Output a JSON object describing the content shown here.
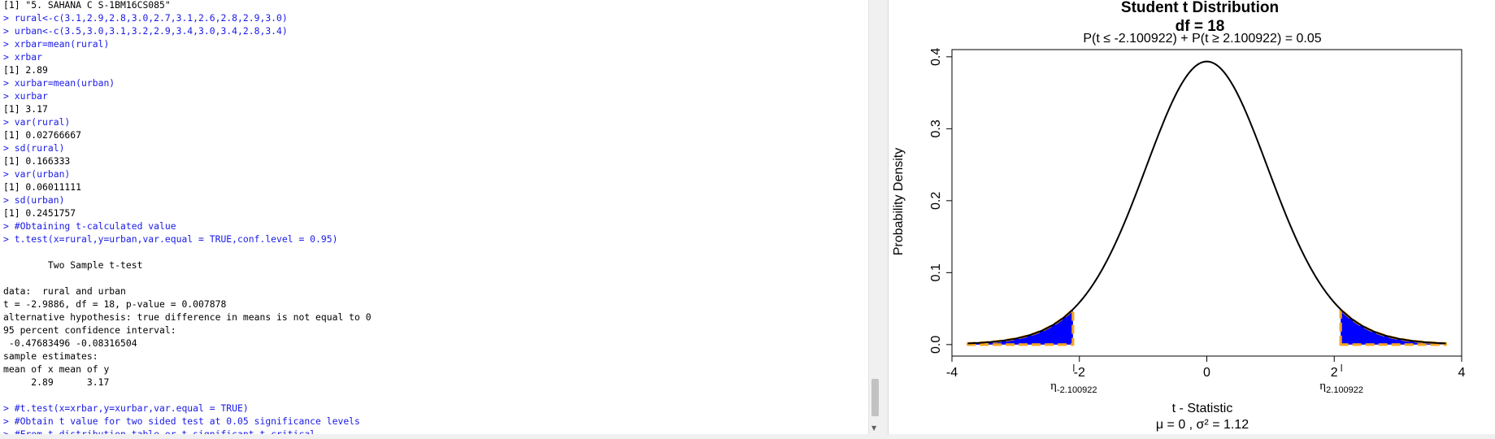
{
  "console": {
    "lines": [
      {
        "t": "[1] \"5. SAHANA C S-1BM16CS085\"",
        "k": "out"
      },
      {
        "t": "> rural<-c(3.1,2.9,2.8,3.0,2.7,3.1,2.6,2.8,2.9,3.0)",
        "k": "in"
      },
      {
        "t": "> urban<-c(3.5,3.0,3.1,3.2,2.9,3.4,3.0,3.4,2.8,3.4)",
        "k": "in"
      },
      {
        "t": "> xrbar=mean(rural)",
        "k": "in"
      },
      {
        "t": "> xrbar",
        "k": "in"
      },
      {
        "t": "[1] 2.89",
        "k": "out"
      },
      {
        "t": "> xurbar=mean(urban)",
        "k": "in"
      },
      {
        "t": "> xurbar",
        "k": "in"
      },
      {
        "t": "[1] 3.17",
        "k": "out"
      },
      {
        "t": "> var(rural)",
        "k": "in"
      },
      {
        "t": "[1] 0.02766667",
        "k": "out"
      },
      {
        "t": "> sd(rural)",
        "k": "in"
      },
      {
        "t": "[1] 0.166333",
        "k": "out"
      },
      {
        "t": "> var(urban)",
        "k": "in"
      },
      {
        "t": "[1] 0.06011111",
        "k": "out"
      },
      {
        "t": "> sd(urban)",
        "k": "in"
      },
      {
        "t": "[1] 0.2451757",
        "k": "out"
      },
      {
        "t": "> #Obtaining t-calculated value",
        "k": "in"
      },
      {
        "t": "> t.test(x=rural,y=urban,var.equal = TRUE,conf.level = 0.95)",
        "k": "in"
      },
      {
        "t": "",
        "k": "out"
      },
      {
        "t": "        Two Sample t-test",
        "k": "out"
      },
      {
        "t": "",
        "k": "out"
      },
      {
        "t": "data:  rural and urban",
        "k": "out"
      },
      {
        "t": "t = -2.9886, df = 18, p-value = 0.007878",
        "k": "out"
      },
      {
        "t": "alternative hypothesis: true difference in means is not equal to 0",
        "k": "out"
      },
      {
        "t": "95 percent confidence interval:",
        "k": "out"
      },
      {
        "t": " -0.47683496 -0.08316504",
        "k": "out"
      },
      {
        "t": "sample estimates:",
        "k": "out"
      },
      {
        "t": "mean of x mean of y",
        "k": "out"
      },
      {
        "t": "     2.89      3.17",
        "k": "out"
      },
      {
        "t": "",
        "k": "out"
      },
      {
        "t": "> #t.test(x=xrbar,y=xurbar,var.equal = TRUE)",
        "k": "in"
      },
      {
        "t": "> #Obtain t value for two sided test at 0.05 significance levels",
        "k": "in"
      },
      {
        "t": "> #From t distribution table or t significant t critical",
        "k": "in"
      }
    ]
  },
  "colors": {
    "input": "#1a1ae6",
    "output": "#000000",
    "fill": "#0000ff",
    "border": "#f5a623"
  },
  "chart_data": {
    "type": "area",
    "distribution": "t",
    "df": 18,
    "title": "Student t Distribution",
    "subtitle": "df = 18",
    "equation": "P(t ≤ -2.100922) + P(t ≥ 2.100922) = 0.05",
    "xlabel": "t - Statistic",
    "ylabel": "Probability Density",
    "footer": "μ = 0 , σ² = 1.12",
    "xlim": [
      -4,
      4
    ],
    "ylim": [
      0,
      0.4
    ],
    "xticks": [
      -4,
      -2,
      0,
      2,
      4
    ],
    "yticks": [
      0.0,
      0.1,
      0.2,
      0.3,
      0.4
    ],
    "ytick_labels": [
      "0.0",
      "0.1",
      "0.2",
      "0.3",
      "0.4"
    ],
    "curve_range": [
      -3.75,
      3.75
    ],
    "critical_values": [
      -2.100922,
      2.100922
    ],
    "critical_labels": [
      "η",
      "η"
    ],
    "critical_label_subs": [
      "-2.100922",
      "2.100922"
    ]
  }
}
